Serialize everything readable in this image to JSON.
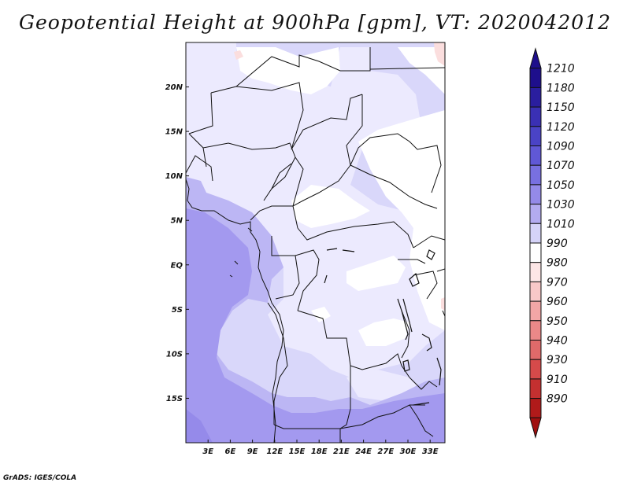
{
  "title": "Geopotential Height at 900hPa [gpm], VT: 2020042012",
  "footer": "GrADS: IGES/COLA",
  "map": {
    "variable": "Geopotential Height",
    "level": "900hPa",
    "units": "gpm",
    "valid_time": "2020042012",
    "lon_range": [
      0,
      35
    ],
    "lat_range": [
      -20,
      25
    ],
    "lat_tick_labels": [
      {
        "value": 20,
        "label": "20N"
      },
      {
        "value": 15,
        "label": "15N"
      },
      {
        "value": 10,
        "label": "10N"
      },
      {
        "value": 5,
        "label": "5N"
      },
      {
        "value": 0,
        "label": "EQ"
      },
      {
        "value": -5,
        "label": "5S"
      },
      {
        "value": -10,
        "label": "10S"
      },
      {
        "value": -15,
        "label": "15S"
      }
    ],
    "lon_tick_labels": [
      {
        "value": 3,
        "label": "3E"
      },
      {
        "value": 6,
        "label": "6E"
      },
      {
        "value": 9,
        "label": "9E"
      },
      {
        "value": 12,
        "label": "12E"
      },
      {
        "value": 15,
        "label": "15E"
      },
      {
        "value": 18,
        "label": "18E"
      },
      {
        "value": 21,
        "label": "21E"
      },
      {
        "value": 24,
        "label": "24E"
      },
      {
        "value": 27,
        "label": "27E"
      },
      {
        "value": 30,
        "label": "30E"
      },
      {
        "value": 33,
        "label": "33E"
      }
    ]
  },
  "colorbar": {
    "levels": [
      {
        "label": "1210",
        "color": "#1e0f8c"
      },
      {
        "label": "1180",
        "color": "#2a1e9f"
      },
      {
        "label": "1150",
        "color": "#3a30b4"
      },
      {
        "label": "1120",
        "color": "#4a43c6"
      },
      {
        "label": "1090",
        "color": "#6058d6"
      },
      {
        "label": "1070",
        "color": "#7870e0"
      },
      {
        "label": "1050",
        "color": "#948ae8"
      },
      {
        "label": "1030",
        "color": "#b3abf0"
      },
      {
        "label": "1010",
        "color": "#d5d3f8"
      },
      {
        "label": "990",
        "color": "#ffffff"
      },
      {
        "label": "980",
        "color": "#fde6e6"
      },
      {
        "label": "970",
        "color": "#f8c8c8"
      },
      {
        "label": "960",
        "color": "#f2a6a6"
      },
      {
        "label": "950",
        "color": "#ea8888"
      },
      {
        "label": "940",
        "color": "#e06a6a"
      },
      {
        "label": "930",
        "color": "#d64a4a"
      },
      {
        "label": "910",
        "color": "#c43030"
      },
      {
        "label": "890",
        "color": "#b01a1a"
      },
      {
        "label": "",
        "color": "#a01010"
      }
    ]
  },
  "fields": {
    "background": "#d9d7fa",
    "light": "#eceafe",
    "white": "#ffffff",
    "medium": "#bcb6f4",
    "deep": "#a399ef",
    "pink": "#fbdede",
    "border": "#111111"
  }
}
